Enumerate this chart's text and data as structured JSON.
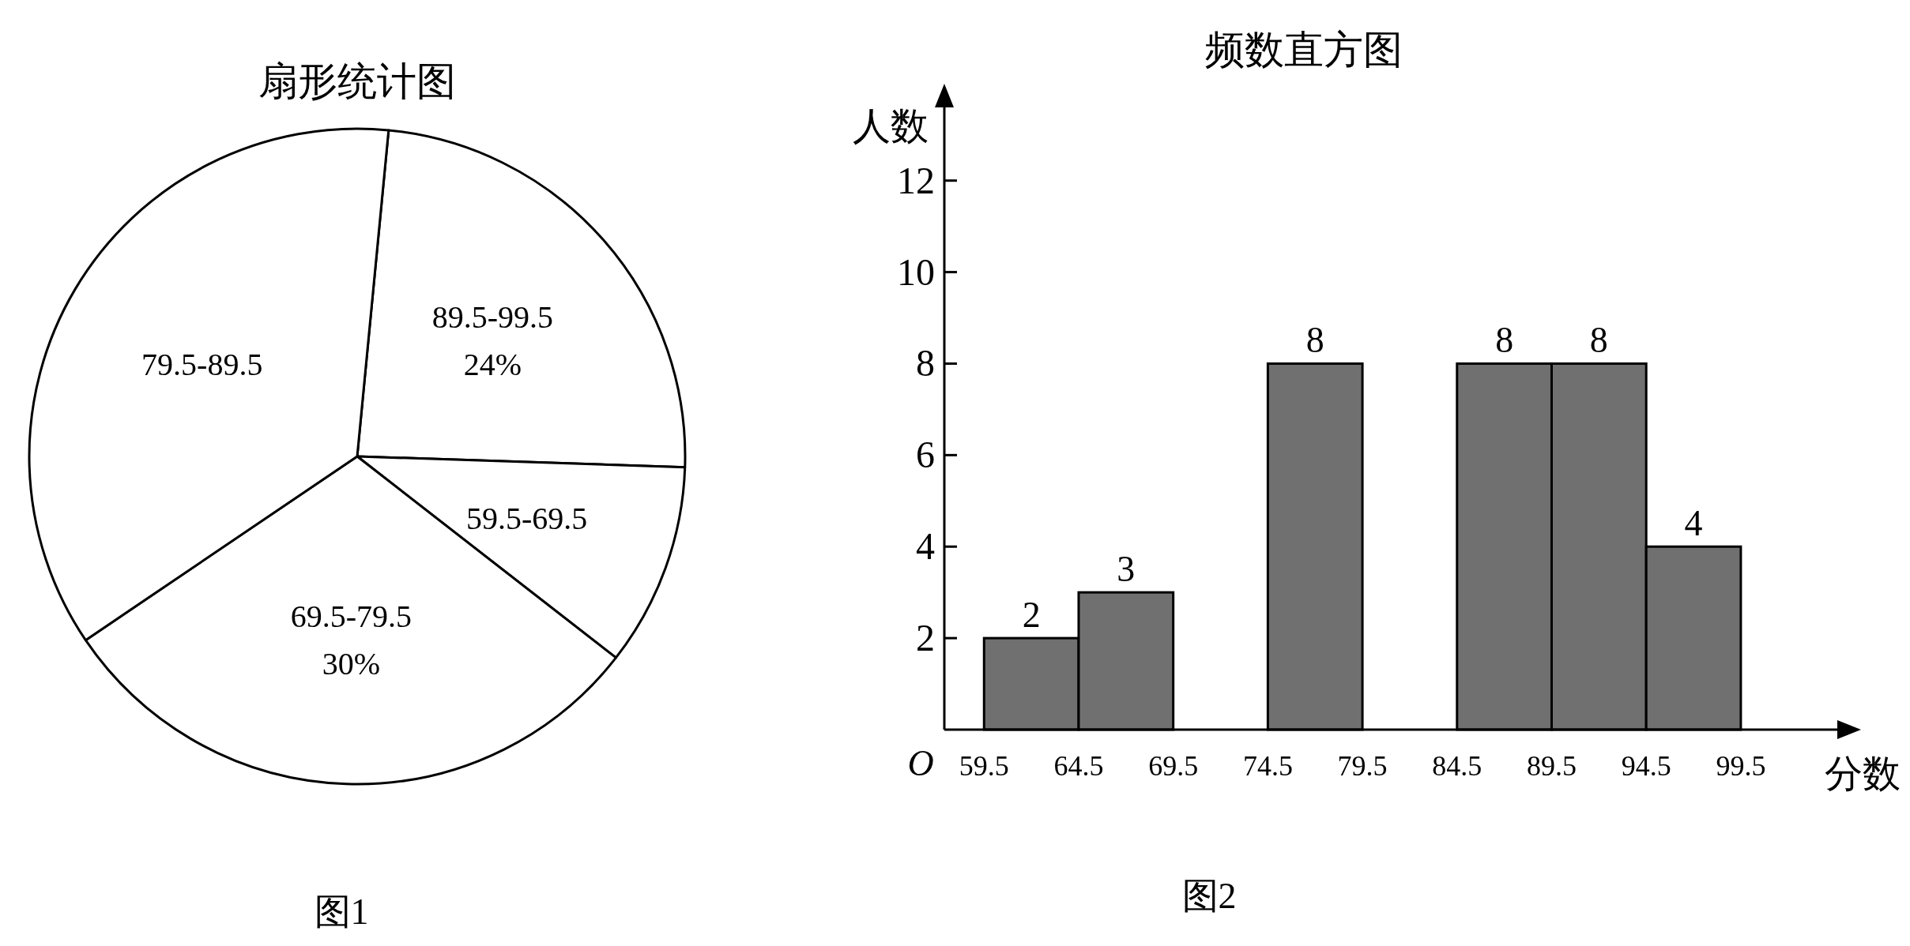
{
  "chart_data": [
    {
      "type": "pie",
      "title": "扇形统计图",
      "categories": [
        "89.5-99.5",
        "59.5-69.5",
        "69.5-79.5",
        "79.5-89.5"
      ],
      "values": [
        24,
        10,
        30,
        36
      ],
      "value_labels": [
        "24%",
        null,
        "30%",
        null
      ],
      "colors": [
        "#ffffff",
        "#ffffff",
        "#ffffff",
        "#ffffff"
      ],
      "annotations": [
        "图1"
      ]
    },
    {
      "type": "histogram",
      "title": "频数直方图",
      "xlabel": "分数",
      "ylabel": "人数",
      "bins": [
        59.5,
        64.5,
        69.5,
        74.5,
        79.5,
        84.5,
        89.5,
        94.5,
        99.5
      ],
      "values": [
        2,
        3,
        null,
        8,
        null,
        8,
        8,
        4
      ],
      "color": "#707070",
      "data_labels": true,
      "xlim": [
        57.4,
        104.6
      ],
      "ylim": [
        0,
        13.6
      ],
      "xticks": [
        59.5,
        64.5,
        69.5,
        74.5,
        79.5,
        84.5,
        89.5,
        94.5,
        99.5
      ],
      "yticks": [
        2,
        4,
        6,
        8,
        10,
        12
      ],
      "grid": false,
      "annotations": [
        "O",
        "图2"
      ]
    }
  ]
}
